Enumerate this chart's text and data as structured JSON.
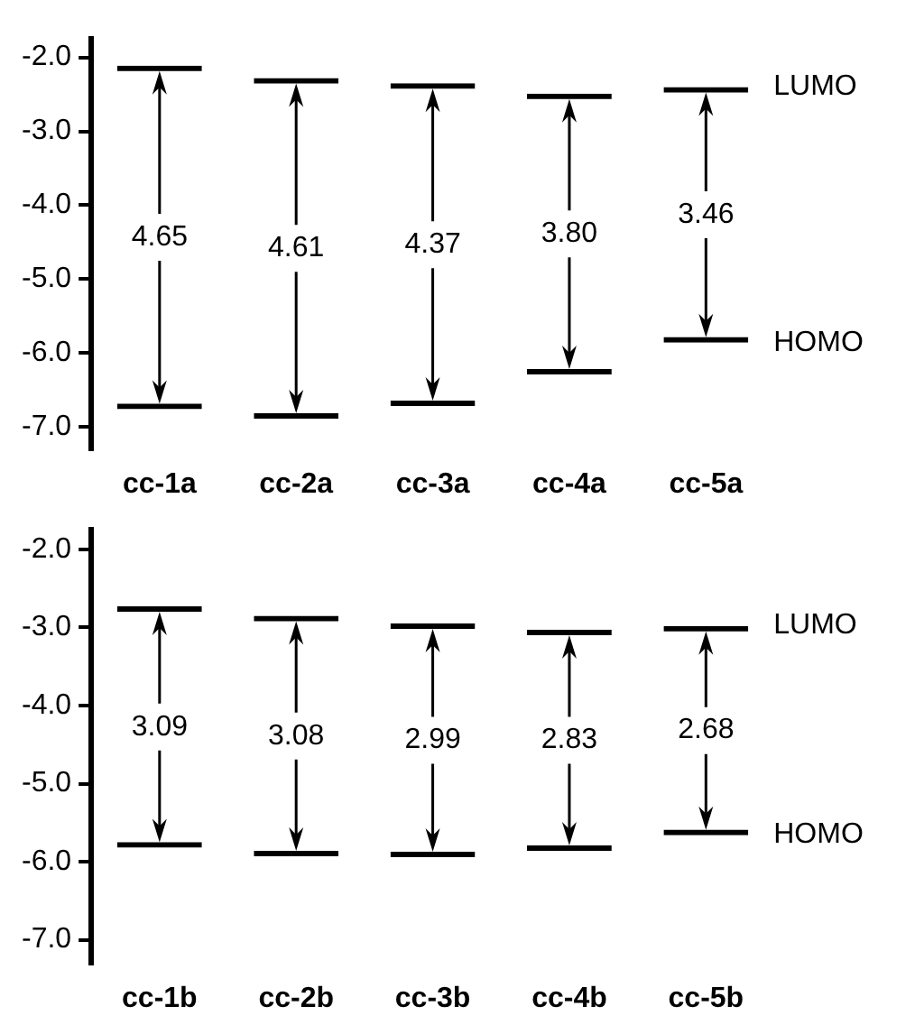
{
  "chart_data": [
    {
      "type": "bar",
      "categories": [
        "cc-1a",
        "cc-2a",
        "cc-3a",
        "cc-4a",
        "cc-5a"
      ],
      "values": [
        4.65,
        4.61,
        4.37,
        3.8,
        3.46
      ],
      "value_labels": [
        "4.65",
        "4.61",
        "4.37",
        "3.80",
        "3.46"
      ],
      "base": [
        -6.76,
        -6.89,
        -6.72,
        -6.29,
        -5.86
      ],
      "color": "#000000",
      "ylim": [
        -7.3,
        -1.75
      ],
      "yticks": [
        {
          "value": -2,
          "label": "-2.0"
        },
        {
          "value": -3,
          "label": "-3.0"
        },
        {
          "value": -4,
          "label": "-4.0"
        },
        {
          "value": -5,
          "label": "-5.0"
        },
        {
          "value": -6,
          "label": "-6.0"
        },
        {
          "value": -7,
          "label": "-7.0"
        }
      ],
      "annotations": [
        "LUMO",
        "HOMO"
      ]
    },
    {
      "type": "bar",
      "categories": [
        "cc-1b",
        "cc-2b",
        "cc-3b",
        "cc-4b",
        "cc-5b"
      ],
      "values": [
        3.09,
        3.08,
        2.99,
        2.83,
        2.68
      ],
      "value_labels": [
        "3.09",
        "3.08",
        "2.99",
        "2.83",
        "2.68"
      ],
      "base": [
        -5.82,
        -5.93,
        -5.94,
        -5.86,
        -5.66
      ],
      "color": "#000000",
      "ylim": [
        -7.3,
        -1.75
      ],
      "yticks": [
        {
          "value": -2,
          "label": "-2.0"
        },
        {
          "value": -3,
          "label": "-3.0"
        },
        {
          "value": -4,
          "label": "-4.0"
        },
        {
          "value": -5,
          "label": "-5.0"
        },
        {
          "value": -6,
          "label": "-6.0"
        },
        {
          "value": -7,
          "label": "-7.0"
        }
      ],
      "annotations": [
        "LUMO",
        "HOMO"
      ]
    }
  ]
}
